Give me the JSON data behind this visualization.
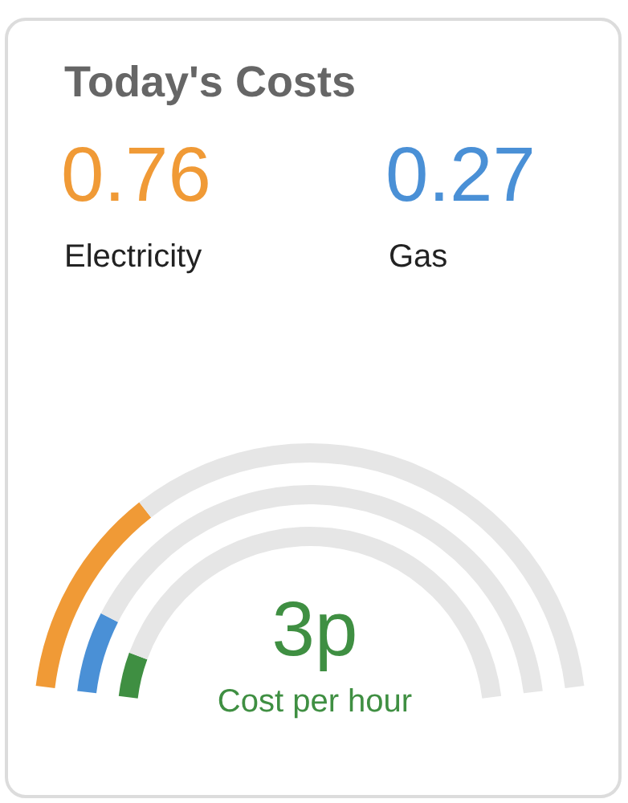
{
  "chart_data": [
    {
      "type": "other",
      "title": "Today's Costs"
    },
    {
      "type": "donut",
      "categories": [
        null,
        null
      ],
      "values": [
        27,
        73
      ],
      "colors": [
        "#f09a36",
        "#e6e6e6"
      ],
      "annotations": [
        "0.76",
        "Electricity"
      ]
    },
    {
      "type": "donut",
      "categories": [
        null,
        null
      ],
      "values": [
        12,
        88
      ],
      "colors": [
        "#4a90d6",
        "#e6e6e6"
      ],
      "annotations": [
        "0.27",
        "Gas"
      ]
    },
    {
      "type": "donut",
      "categories": [
        null,
        null
      ],
      "values": [
        8,
        92
      ],
      "colors": [
        "#3f8f42",
        "#e6e6e6"
      ],
      "annotations": [
        "3p",
        "Cost per hour"
      ]
    }
  ]
}
